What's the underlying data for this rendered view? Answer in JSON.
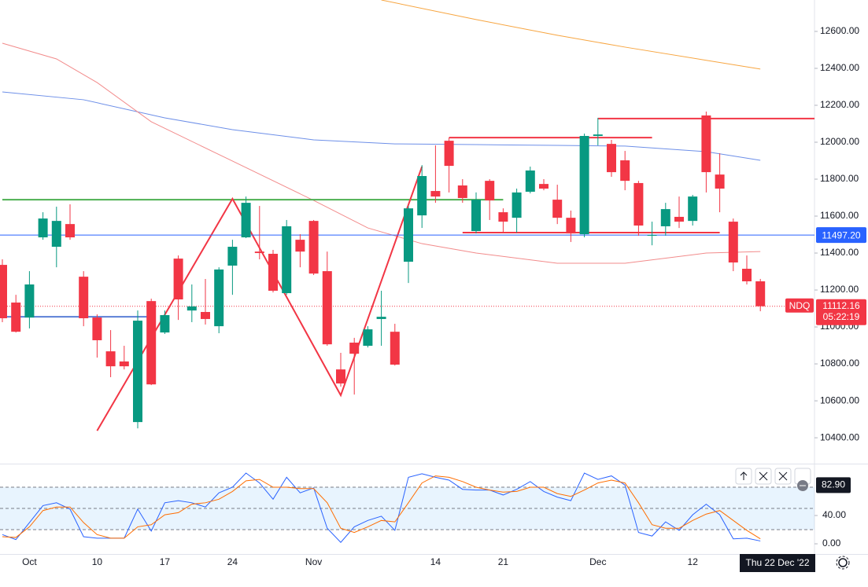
{
  "chart_data": {
    "type": "candlestick",
    "categories": [
      null,
      null,
      "Oct",
      null,
      null,
      null,
      null,
      "10",
      null,
      null,
      null,
      null,
      "17",
      null,
      null,
      null,
      null,
      "24",
      null,
      null,
      null,
      null,
      null,
      "Nov",
      null,
      null,
      null,
      null,
      null,
      null,
      null,
      null,
      "14",
      null,
      null,
      null,
      null,
      "21",
      null,
      null,
      null,
      null,
      null,
      null,
      "Dec",
      null,
      null,
      null,
      null,
      null,
      null,
      "12",
      null,
      null,
      null,
      null,
      null
    ],
    "open": [
      11336,
      11132,
      11051,
      11485,
      11434,
      11557,
      11272,
      11051,
      10868,
      10813,
      10485,
      11140,
      10970,
      11370,
      11089,
      11081,
      11004,
      11332,
      11485,
      11408,
      11396,
      11183,
      11472,
      11574,
      11302,
      10770,
      10915,
      10898,
      11043,
      10974,
      11353,
      11604,
      11736,
      12008,
      11766,
      11519,
      11791,
      11621,
      11591,
      11732,
      11774,
      11689,
      11591,
      11502,
      12034,
      11991,
      11902,
      11779,
      11494,
      11545,
      11596,
      11574,
      12145,
      11825,
      11570,
      11315,
      11247
    ],
    "high": [
      11366,
      11174,
      11302,
      11621,
      11651,
      11664,
      11302,
      11068,
      10983,
      10898,
      11089,
      11153,
      11089,
      11387,
      11230,
      11260,
      11323,
      11472,
      11706,
      11655,
      11417,
      11579,
      11502,
      11579,
      11408,
      10860,
      10941,
      11004,
      11196,
      11017,
      11655,
      11876,
      11983,
      12025,
      11800,
      11728,
      11800,
      11642,
      11749,
      11868,
      11800,
      11770,
      11630,
      12047,
      12132,
      12013,
      11953,
      11791,
      11570,
      11672,
      11706,
      11715,
      12166,
      11940,
      11587,
      11387,
      11260
    ],
    "low": [
      11026,
      10970,
      10992,
      11472,
      11323,
      11472,
      11004,
      10834,
      10728,
      10770,
      10451,
      10685,
      10962,
      11038,
      11026,
      11013,
      10966,
      11174,
      11481,
      11366,
      11187,
      11174,
      11323,
      11281,
      10898,
      10677,
      10634,
      10889,
      10898,
      10791,
      11238,
      11536,
      11672,
      11728,
      11672,
      11506,
      11579,
      11515,
      11511,
      11723,
      11740,
      11557,
      11460,
      11485,
      11983,
      11813,
      11740,
      11494,
      11442,
      11494,
      11536,
      11549,
      11728,
      11621,
      11302,
      11230,
      11085
    ],
    "close": [
      11047,
      10974,
      11230,
      11587,
      11574,
      11485,
      11047,
      10928,
      10787,
      10787,
      11034,
      10689,
      11064,
      11149,
      11111,
      11043,
      11311,
      11434,
      11672,
      11400,
      11196,
      11545,
      11408,
      11289,
      10906,
      10694,
      10855,
      10987,
      11055,
      10796,
      11642,
      11817,
      11706,
      11872,
      11698,
      11689,
      11685,
      11570,
      11728,
      11847,
      11749,
      11591,
      11506,
      12034,
      12042,
      11838,
      11791,
      11549,
      11498,
      11638,
      11570,
      11706,
      11838,
      11749,
      11349,
      11247,
      11112.16
    ],
    "up_color": "#089981",
    "down_color": "#f23645",
    "ylim": [
      10260,
      12770
    ],
    "yticks": [
      {
        "value": 12600,
        "label": "12600.00"
      },
      {
        "value": 12400,
        "label": "12400.00"
      },
      {
        "value": 12200,
        "label": "12200.00"
      },
      {
        "value": 12000,
        "label": "12000.00"
      },
      {
        "value": 11800,
        "label": "11800.00"
      },
      {
        "value": 11600,
        "label": "11600.00"
      },
      {
        "value": 11400,
        "label": "11400.00"
      },
      {
        "value": 11200,
        "label": "11200.00"
      },
      {
        "value": 11000,
        "label": "11000.00"
      },
      {
        "value": 10800,
        "label": "10800.00"
      },
      {
        "value": 10600,
        "label": "10600.00"
      },
      {
        "value": 10400,
        "label": "10400.00"
      }
    ],
    "grid": false,
    "overlays": [
      {
        "color": "#f7a540",
        "x": [
          28,
          35,
          41,
          46,
          56
        ],
        "values": [
          12770,
          12664,
          12579,
          12515,
          12396
        ]
      },
      {
        "color": "#6d8fe8",
        "x": [
          0,
          6,
          12,
          17,
          23,
          29,
          35,
          41,
          46,
          52,
          56
        ],
        "values": [
          12272,
          12230,
          12132,
          12068,
          12013,
          11991,
          11987,
          11983,
          11979,
          11949,
          11902
        ]
      },
      {
        "color": "#f28b8b",
        "x": [
          0,
          4,
          7,
          11,
          17,
          23,
          27,
          31,
          35,
          41,
          46,
          52,
          56
        ],
        "values": [
          12536,
          12451,
          12323,
          12111,
          11898,
          11685,
          11536,
          11451,
          11400,
          11345,
          11345,
          11400,
          11408
        ]
      }
    ],
    "drawings": [
      {
        "color": "#4caf50",
        "x": [
          0,
          37
        ],
        "values": [
          11689,
          11689
        ]
      },
      {
        "color": "#f23645",
        "x": [
          7,
          17,
          25,
          31
        ],
        "values": [
          10438,
          11694,
          10630,
          11868
        ]
      },
      {
        "color": "#f23645",
        "x": [
          33,
          48
        ],
        "values": [
          12025,
          12025
        ]
      },
      {
        "color": "#f23645",
        "x": [
          44,
          60
        ],
        "values": [
          12128,
          12128
        ]
      },
      {
        "color": "#f23645",
        "x": [
          34,
          53
        ],
        "values": [
          11511,
          11511
        ]
      },
      {
        "color": "#5b7fd6",
        "x": [
          0,
          11
        ],
        "values": [
          11055,
          11055
        ]
      }
    ],
    "price_line": {
      "value": 11497.2,
      "label": "11497.20",
      "color": "#2962ff"
    },
    "last": {
      "symbol": "NDQ",
      "value": 11112.16,
      "countdown": "05:22:19",
      "color": "#f23645"
    },
    "date_label": "Thu 22 Dec '22",
    "lower": {
      "ylim": [
        -14.4,
        111.1
      ],
      "yticks": [
        {
          "value": 40,
          "label": "40.00"
        },
        {
          "value": 0,
          "label": "0.00"
        }
      ],
      "bands": [
        20,
        50,
        80
      ],
      "current": {
        "value": 82.9,
        "label": "82.90"
      },
      "series": [
        {
          "color": "#2962ff",
          "values": [
            13,
            6,
            30,
            54,
            58,
            49,
            10,
            8,
            8,
            8,
            49,
            18,
            58,
            61,
            58,
            52,
            72,
            80,
            100,
            86,
            63,
            94,
            72,
            79,
            22,
            2,
            24,
            33,
            39,
            19,
            94,
            99,
            94,
            90,
            77,
            76,
            76,
            69,
            77,
            88,
            74,
            66,
            61,
            100,
            91,
            96,
            83,
            16,
            11,
            31,
            19,
            41,
            56,
            41,
            7,
            8,
            4
          ]
        },
        {
          "color": "#ff6d00",
          "values": [
            10,
            9,
            24,
            47,
            52,
            52,
            30,
            13,
            8,
            8,
            24,
            27,
            41,
            44,
            56,
            58,
            63,
            74,
            89,
            91,
            80,
            80,
            78,
            78,
            58,
            22,
            16,
            24,
            33,
            31,
            58,
            86,
            96,
            94,
            88,
            80,
            76,
            73,
            74,
            80,
            80,
            71,
            67,
            76,
            86,
            90,
            86,
            58,
            27,
            22,
            22,
            33,
            42,
            47,
            33,
            19,
            7
          ]
        }
      ]
    }
  }
}
